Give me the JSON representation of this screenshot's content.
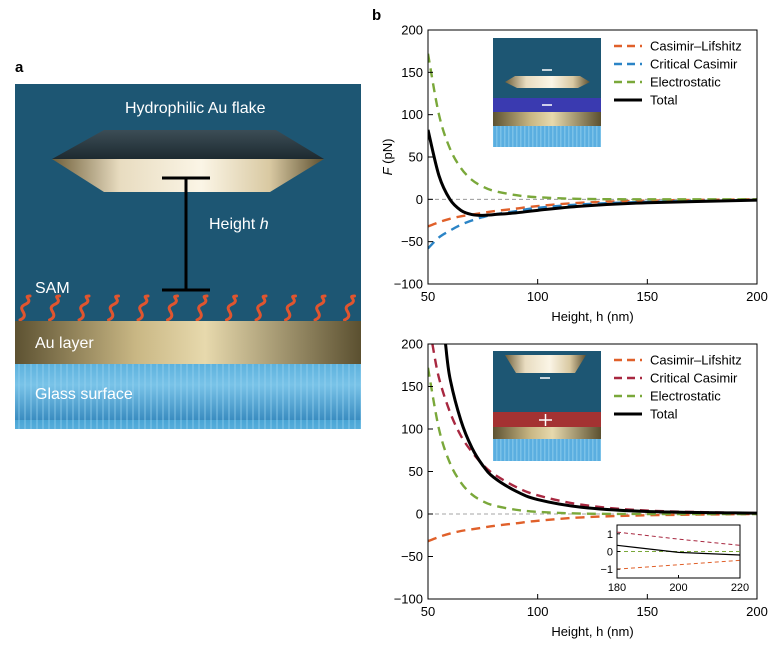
{
  "panel_a": {
    "label": "a",
    "flake_label": "Hydrophilic Au flake",
    "height_label": "Height ",
    "height_symbol": "h",
    "sam_label": "SAM",
    "au_layer_label": "Au layer",
    "glass_label": "Glass surface"
  },
  "panel_b": {
    "label": "b"
  },
  "chart_data": [
    {
      "type": "line",
      "title": "",
      "xlabel": "Height, h (nm)",
      "ylabel": "F (pN)",
      "xlim": [
        50,
        200
      ],
      "ylim": [
        -100,
        200
      ],
      "x_ticks": [
        50,
        100,
        150,
        200
      ],
      "y_ticks": [
        -100,
        -50,
        0,
        50,
        100,
        150,
        200
      ],
      "legend_position": "top-right",
      "series": [
        {
          "name": "Casimir–Lifshitz",
          "color": "#e0602a",
          "style": "dashed",
          "x": [
            50,
            55,
            60,
            65,
            70,
            75,
            80,
            90,
            100,
            120,
            150,
            200
          ],
          "y": [
            -32,
            -27,
            -23,
            -20,
            -18,
            -16,
            -14,
            -11,
            -8,
            -4,
            -1.5,
            0
          ]
        },
        {
          "name": "Critical Casimir",
          "color": "#2b84c6",
          "style": "dashed",
          "x": [
            50,
            55,
            60,
            65,
            70,
            75,
            80,
            90,
            100,
            120,
            150,
            200
          ],
          "y": [
            -58,
            -45,
            -37,
            -30,
            -25,
            -21,
            -18,
            -14,
            -10,
            -6,
            -3,
            -1
          ]
        },
        {
          "name": "Electrostatic",
          "color": "#7aa83a",
          "style": "dashed",
          "x": [
            50,
            55,
            60,
            65,
            70,
            75,
            80,
            90,
            100,
            120,
            150,
            200
          ],
          "y": [
            172,
            100,
            60,
            37,
            23,
            15,
            10,
            5,
            2.5,
            0.5,
            0,
            0
          ]
        },
        {
          "name": "Total",
          "color": "#000000",
          "style": "solid",
          "x": [
            50,
            55,
            60,
            65,
            70,
            75,
            80,
            90,
            100,
            120,
            150,
            200
          ],
          "y": [
            82,
            28,
            0,
            -13,
            -18,
            -19,
            -18,
            -16,
            -13,
            -8,
            -4,
            -1
          ]
        }
      ]
    },
    {
      "type": "line",
      "title": "",
      "xlabel": "Height, h (nm)",
      "ylabel": "",
      "xlim": [
        50,
        200
      ],
      "ylim": [
        -100,
        200
      ],
      "x_ticks": [
        50,
        100,
        150,
        200
      ],
      "y_ticks": [
        -100,
        -50,
        0,
        50,
        100,
        150,
        200
      ],
      "legend_position": "top-right",
      "series": [
        {
          "name": "Casimir–Lifshitz",
          "color": "#e0602a",
          "style": "dashed",
          "x": [
            50,
            55,
            60,
            65,
            70,
            75,
            80,
            90,
            100,
            120,
            150,
            200
          ],
          "y": [
            -32,
            -27,
            -23,
            -20,
            -18,
            -16,
            -14,
            -11,
            -8,
            -4,
            -1.5,
            0
          ]
        },
        {
          "name": "Critical Casimir",
          "color": "#a82840",
          "style": "dashed",
          "x": [
            52,
            55,
            60,
            65,
            70,
            75,
            80,
            90,
            100,
            120,
            150,
            200
          ],
          "y": [
            200,
            160,
            120,
            92,
            73,
            58,
            47,
            32,
            22,
            11,
            4,
            1
          ]
        },
        {
          "name": "Electrostatic",
          "color": "#7aa83a",
          "style": "dashed",
          "x": [
            50,
            55,
            60,
            65,
            70,
            75,
            80,
            90,
            100,
            120,
            150,
            200
          ],
          "y": [
            172,
            100,
            60,
            37,
            23,
            15,
            10,
            5,
            2.5,
            0.5,
            0,
            0
          ]
        },
        {
          "name": "Total",
          "color": "#000000",
          "style": "solid",
          "x": [
            58,
            60,
            65,
            70,
            75,
            80,
            90,
            100,
            120,
            150,
            200
          ],
          "y": [
            200,
            160,
            110,
            78,
            57,
            43,
            27,
            17,
            8,
            3,
            1
          ]
        }
      ],
      "inset": {
        "xlim": [
          180,
          220
        ],
        "ylim": [
          -1.5,
          1.5
        ],
        "x_ticks": [
          180,
          200,
          220
        ],
        "y_ticks": [
          -1,
          0,
          1
        ],
        "series": [
          {
            "name": "Casimir–Lifshitz",
            "color": "#e0602a",
            "style": "dashed",
            "x": [
              180,
              200,
              220
            ],
            "y": [
              -1.0,
              -0.75,
              -0.5
            ]
          },
          {
            "name": "Critical Casimir",
            "color": "#a82840",
            "style": "dashed",
            "x": [
              180,
              200,
              220
            ],
            "y": [
              1.1,
              0.7,
              0.35
            ]
          },
          {
            "name": "Electrostatic",
            "color": "#7aa83a",
            "style": "dashed",
            "x": [
              180,
              200,
              220
            ],
            "y": [
              0,
              0,
              0
            ]
          },
          {
            "name": "Total",
            "color": "#000000",
            "style": "solid",
            "x": [
              180,
              200,
              220
            ],
            "y": [
              0.35,
              -0.05,
              -0.2
            ]
          }
        ]
      }
    }
  ]
}
